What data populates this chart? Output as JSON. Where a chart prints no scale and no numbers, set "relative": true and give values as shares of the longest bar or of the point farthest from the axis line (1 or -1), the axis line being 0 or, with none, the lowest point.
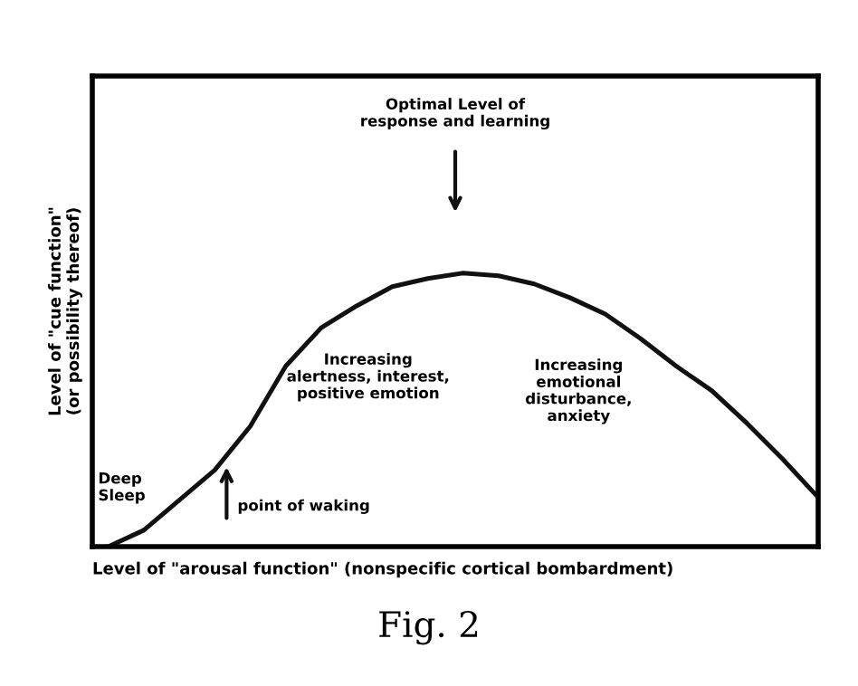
{
  "chart_data": {
    "type": "line",
    "relative": true,
    "legend": false,
    "marker": "none",
    "line_style": "solid",
    "xlabel": "Level of \"arousal function\" (nonspecific cortical bombardment)",
    "ylabel": "Level of \"cue function\"\n(or possibility thereof)",
    "categories": [
      null,
      null,
      null,
      null,
      null,
      null,
      null,
      null,
      null,
      null,
      null,
      null,
      null,
      null,
      null,
      null,
      null,
      null,
      null,
      null,
      null
    ],
    "series": [
      {
        "color": "#111111",
        "values": [
          0,
          0.06,
          0.17,
          0.28,
          0.44,
          0.66,
          0.8,
          0.88,
          0.95,
          0.98,
          1.0,
          0.99,
          0.96,
          0.91,
          0.85,
          0.76,
          0.66,
          0.57,
          0.45,
          0.32,
          0.18
        ]
      }
    ],
    "annotations": [
      "Optimal Level of\nresponse and learning",
      "Deep\nSleep",
      "point of waking",
      "Increasing\nalertness, interest,\npositive emotion",
      "Increasing\nemotional\ndisturbance,\nanxiety",
      "Fig. 2"
    ]
  }
}
